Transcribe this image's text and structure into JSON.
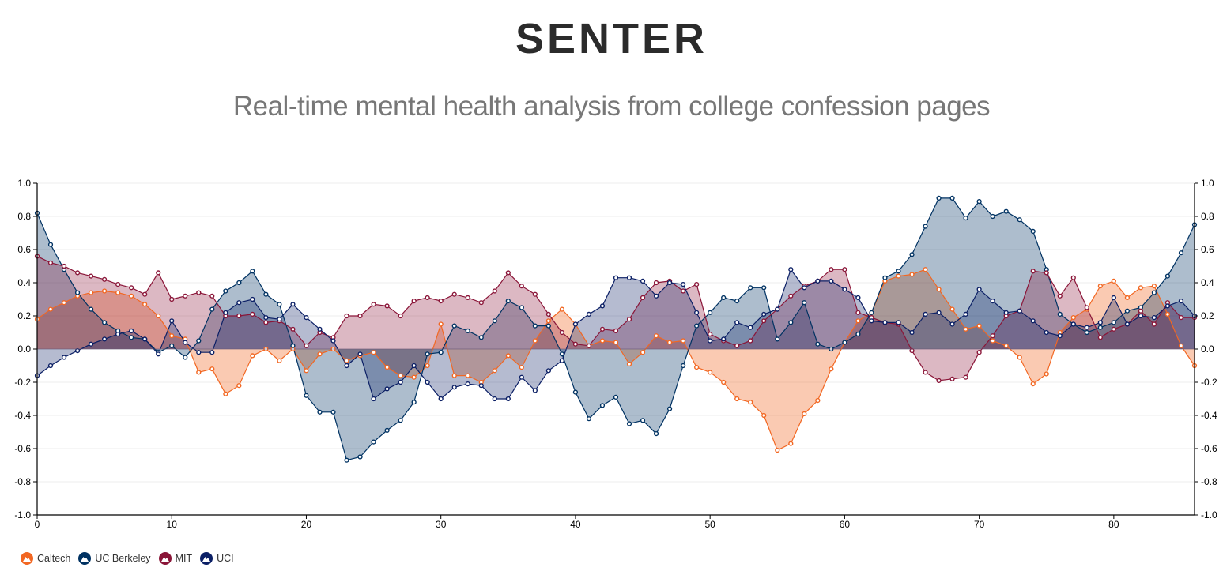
{
  "header": {
    "title": "SENTER",
    "subtitle": "Real-time mental health analysis from college confession pages"
  },
  "legend": {
    "items": [
      {
        "label": "Caltech",
        "color": "#f26722",
        "icon": "mountain-icon"
      },
      {
        "label": "UC Berkeley",
        "color": "#003262",
        "icon": "mountain-icon"
      },
      {
        "label": "MIT",
        "color": "#8a1538",
        "icon": "mountain-icon"
      },
      {
        "label": "UCI",
        "color": "#0b1f65",
        "icon": "mountain-icon"
      }
    ]
  },
  "chart_data": {
    "type": "area",
    "x": [
      0,
      1,
      2,
      3,
      4,
      5,
      6,
      7,
      8,
      9,
      10,
      11,
      12,
      13,
      14,
      15,
      16,
      17,
      18,
      19,
      20,
      21,
      22,
      23,
      24,
      25,
      26,
      27,
      28,
      29,
      30,
      31,
      32,
      33,
      34,
      35,
      36,
      37,
      38,
      39,
      40,
      41,
      42,
      43,
      44,
      45,
      46,
      47,
      48,
      49,
      50,
      51,
      52,
      53,
      54,
      55,
      56,
      57,
      58,
      59,
      60,
      61,
      62,
      63,
      64,
      65,
      66,
      67,
      68,
      69,
      70,
      71,
      72,
      73,
      74,
      75,
      76,
      77,
      78,
      79,
      80,
      81,
      82,
      83,
      84,
      85,
      86
    ],
    "xlim": [
      0,
      86
    ],
    "ylim": [
      -1.0,
      1.0
    ],
    "xticks": [
      "0",
      "10",
      "20",
      "30",
      "40",
      "50",
      "60",
      "70",
      "80"
    ],
    "yticks": [
      "1.0",
      "0.8",
      "0.6",
      "0.4",
      "0.2",
      "0.0",
      "-0.2",
      "-0.4",
      "-0.6",
      "-0.8",
      "-1.0"
    ],
    "grid": true,
    "legend_position": "bottom-left",
    "series": [
      {
        "name": "Caltech",
        "color": "#f26722",
        "values": [
          0.18,
          0.24,
          0.28,
          0.32,
          0.34,
          0.35,
          0.34,
          0.32,
          0.27,
          0.2,
          0.08,
          0.06,
          -0.14,
          -0.12,
          -0.27,
          -0.22,
          -0.04,
          0.0,
          -0.07,
          0.0,
          -0.13,
          -0.03,
          0.0,
          -0.07,
          -0.04,
          -0.02,
          -0.11,
          -0.16,
          -0.17,
          -0.1,
          0.15,
          -0.16,
          -0.16,
          -0.2,
          -0.13,
          -0.04,
          -0.11,
          0.05,
          0.17,
          0.24,
          0.15,
          0.02,
          0.05,
          0.04,
          -0.09,
          -0.02,
          0.08,
          0.04,
          0.05,
          -0.11,
          -0.14,
          -0.2,
          -0.3,
          -0.32,
          -0.4,
          -0.61,
          -0.57,
          -0.39,
          -0.31,
          -0.12,
          0.04,
          0.17,
          0.22,
          0.41,
          0.44,
          0.45,
          0.48,
          0.36,
          0.24,
          0.12,
          0.14,
          0.05,
          0.02,
          -0.05,
          -0.21,
          -0.15,
          0.1,
          0.19,
          0.24,
          0.38,
          0.41,
          0.31,
          0.37,
          0.38,
          0.21,
          0.02,
          -0.1
        ]
      },
      {
        "name": "UC Berkeley",
        "color": "#003262",
        "values": [
          0.82,
          0.63,
          0.48,
          0.34,
          0.24,
          0.16,
          0.11,
          0.07,
          0.06,
          -0.02,
          0.02,
          -0.05,
          0.05,
          0.24,
          0.35,
          0.4,
          0.47,
          0.33,
          0.27,
          0.02,
          -0.28,
          -0.38,
          -0.38,
          -0.67,
          -0.65,
          -0.56,
          -0.49,
          -0.43,
          -0.32,
          -0.03,
          -0.02,
          0.14,
          0.11,
          0.07,
          0.17,
          0.29,
          0.25,
          0.14,
          0.14,
          -0.03,
          -0.26,
          -0.42,
          -0.34,
          -0.29,
          -0.45,
          -0.43,
          -0.51,
          -0.36,
          -0.1,
          0.14,
          0.22,
          0.31,
          0.29,
          0.37,
          0.37,
          0.06,
          0.16,
          0.28,
          0.03,
          0.0,
          0.04,
          0.09,
          0.22,
          0.43,
          0.47,
          0.57,
          0.74,
          0.91,
          0.91,
          0.79,
          0.89,
          0.8,
          0.83,
          0.78,
          0.71,
          0.48,
          0.21,
          0.15,
          0.1,
          0.13,
          0.16,
          0.23,
          0.25,
          0.34,
          0.44,
          0.58,
          0.75
        ]
      },
      {
        "name": "MIT",
        "color": "#8a1538",
        "values": [
          0.56,
          0.52,
          0.5,
          0.46,
          0.44,
          0.42,
          0.39,
          0.37,
          0.33,
          0.46,
          0.3,
          0.32,
          0.34,
          0.32,
          0.2,
          0.2,
          0.21,
          0.16,
          0.17,
          0.12,
          0.02,
          0.1,
          0.07,
          0.2,
          0.2,
          0.27,
          0.26,
          0.2,
          0.29,
          0.31,
          0.29,
          0.33,
          0.31,
          0.28,
          0.35,
          0.46,
          0.38,
          0.33,
          0.21,
          0.1,
          0.03,
          0.02,
          0.12,
          0.11,
          0.18,
          0.31,
          0.4,
          0.41,
          0.35,
          0.39,
          0.09,
          0.05,
          0.02,
          0.05,
          0.17,
          0.24,
          0.32,
          0.38,
          0.41,
          0.48,
          0.48,
          0.22,
          0.19,
          0.16,
          0.15,
          -0.01,
          -0.14,
          -0.19,
          -0.18,
          -0.17,
          -0.02,
          0.08,
          0.2,
          0.23,
          0.47,
          0.46,
          0.32,
          0.43,
          0.25,
          0.07,
          0.12,
          0.15,
          0.23,
          0.15,
          0.28,
          0.19,
          0.19
        ]
      },
      {
        "name": "UCI",
        "color": "#0b1f65",
        "values": [
          -0.16,
          -0.1,
          -0.05,
          -0.01,
          0.03,
          0.06,
          0.09,
          0.11,
          0.06,
          -0.03,
          0.17,
          0.04,
          -0.02,
          -0.02,
          0.22,
          0.28,
          0.3,
          0.19,
          0.18,
          0.27,
          0.19,
          0.12,
          0.05,
          -0.1,
          -0.03,
          -0.3,
          -0.24,
          -0.2,
          -0.1,
          -0.2,
          -0.3,
          -0.23,
          -0.21,
          -0.22,
          -0.3,
          -0.3,
          -0.17,
          -0.25,
          -0.13,
          -0.07,
          0.15,
          0.21,
          0.26,
          0.43,
          0.43,
          0.41,
          0.32,
          0.4,
          0.39,
          0.22,
          0.05,
          0.06,
          0.16,
          0.13,
          0.21,
          0.24,
          0.48,
          0.37,
          0.41,
          0.41,
          0.36,
          0.31,
          0.17,
          0.16,
          0.16,
          0.1,
          0.21,
          0.22,
          0.15,
          0.21,
          0.36,
          0.29,
          0.22,
          0.23,
          0.17,
          0.1,
          0.08,
          0.15,
          0.13,
          0.16,
          0.31,
          0.15,
          0.2,
          0.19,
          0.26,
          0.29,
          0.2
        ]
      }
    ]
  }
}
